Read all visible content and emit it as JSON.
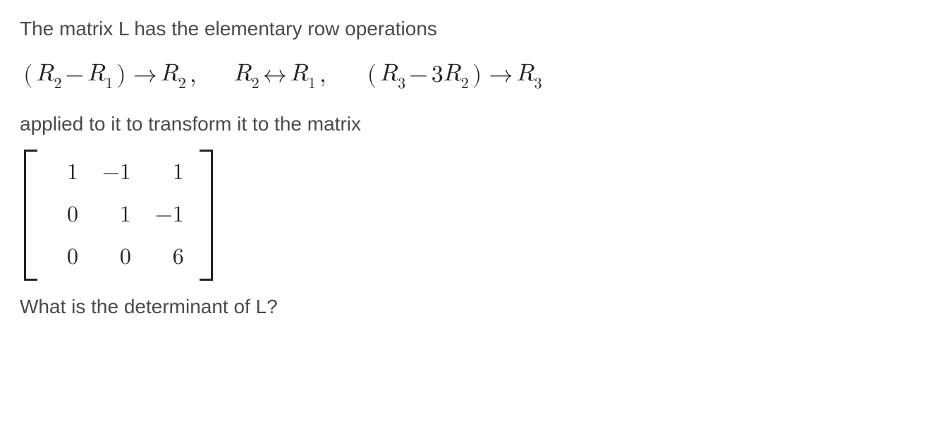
{
  "intro": "The matrix L has the elementary row operations",
  "ops": [
    {
      "lparen": "(",
      "a": "R",
      "a_sub": "2",
      "minus": " − ",
      "b": "R",
      "b_sub": "1",
      "rparen": ")",
      "arrow": " → ",
      "t": "R",
      "t_sub": "2",
      "comma": " ,"
    },
    {
      "a": "R",
      "a_sub": "2",
      "swap": " ↔ ",
      "b": "R",
      "b_sub": "1",
      "comma": " ,"
    },
    {
      "lparen": "(",
      "a": "R",
      "a_sub": "3",
      "minus": " − ",
      "coef": "3",
      "b": "R",
      "b_sub": "2",
      "rparen": ")",
      "arrow": " → ",
      "t": "R",
      "t_sub": "3"
    }
  ],
  "mid": "applied to it to transform it to the matrix",
  "matrix": {
    "rows": [
      [
        "1",
        "−1",
        "1"
      ],
      [
        "0",
        "1",
        "−1"
      ],
      [
        "0",
        "0",
        "6"
      ]
    ],
    "text_color": "#222222",
    "bracket_color": "#222222"
  },
  "question": "What is the determinant of L?",
  "colors": {
    "prose": "#4a4a4a",
    "math": "#222222",
    "background": "#ffffff"
  },
  "fontsizes_pt": {
    "prose": 21,
    "math": 26,
    "matrix": 24
  }
}
